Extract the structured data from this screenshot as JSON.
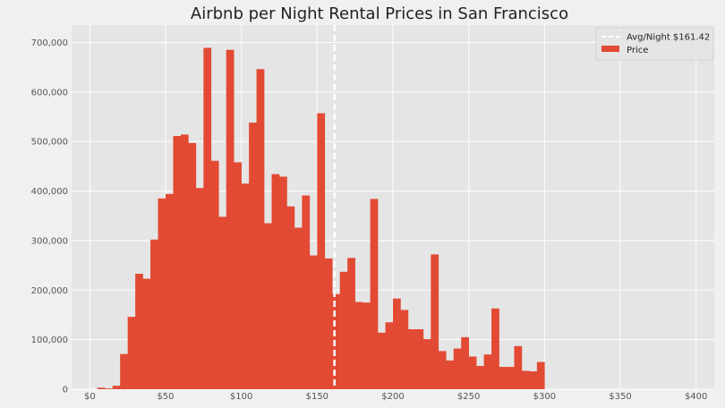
{
  "chart_data": {
    "type": "bar",
    "title": "Airbnb per Night Rental Prices in San Francisco",
    "xlabel": "",
    "ylabel": "",
    "xlim": [
      -12,
      412
    ],
    "ylim": [
      0,
      735000
    ],
    "grid": true,
    "legend_position": "top-right",
    "bin_width": 5,
    "bin_edges_start": 5,
    "x_ticks": [
      {
        "value": 0,
        "label": "$0"
      },
      {
        "value": 50,
        "label": "$50"
      },
      {
        "value": 100,
        "label": "$100"
      },
      {
        "value": 150,
        "label": "$150"
      },
      {
        "value": 200,
        "label": "$200"
      },
      {
        "value": 250,
        "label": "$250"
      },
      {
        "value": 300,
        "label": "$300"
      },
      {
        "value": 350,
        "label": "$350"
      },
      {
        "value": 400,
        "label": "$400"
      }
    ],
    "y_ticks": [
      {
        "value": 0,
        "label": "0"
      },
      {
        "value": 100000,
        "label": "100,000"
      },
      {
        "value": 200000,
        "label": "200,000"
      },
      {
        "value": 300000,
        "label": "300,000"
      },
      {
        "value": 400000,
        "label": "400,000"
      },
      {
        "value": 500000,
        "label": "500,000"
      },
      {
        "value": 600000,
        "label": "600,000"
      },
      {
        "value": 700000,
        "label": "700,000"
      }
    ],
    "series": [
      {
        "name": "Price",
        "color": "#e24a33",
        "values": [
          3000,
          1500,
          7000,
          71000,
          146000,
          233000,
          223000,
          302000,
          385000,
          394000,
          511000,
          514000,
          497000,
          406000,
          689000,
          461000,
          348000,
          685000,
          458000,
          415000,
          538000,
          646000,
          335000,
          434000,
          429000,
          369000,
          326000,
          391000,
          270000,
          557000,
          264000,
          192000,
          237000,
          265000,
          176000,
          175000,
          384000,
          114000,
          135000,
          183000,
          160000,
          121000,
          121000,
          101000,
          272000,
          77000,
          58000,
          82000,
          105000,
          66000,
          47000,
          70000,
          163000,
          45000,
          45000,
          87000,
          37000,
          36000,
          55000
        ]
      }
    ],
    "reference_line": {
      "label": "Avg/Night $161.42",
      "x": 161.42,
      "color": "#ffffff",
      "style": "dashed"
    }
  }
}
